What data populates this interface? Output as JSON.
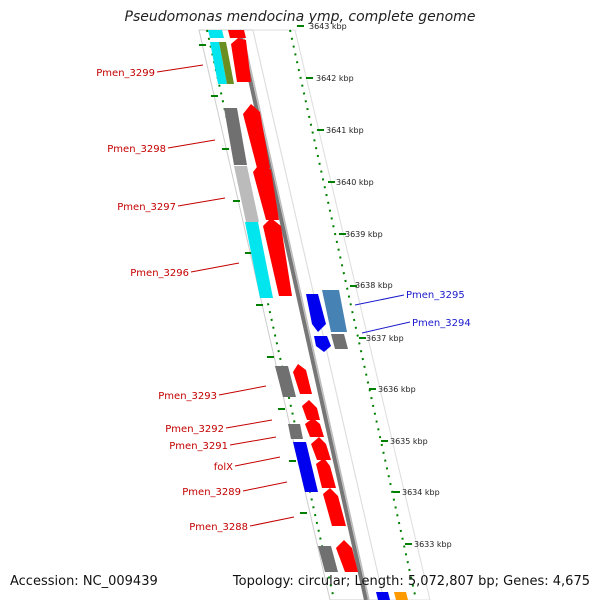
{
  "title": "Pseudomonas mendocina ymp, complete genome",
  "accession": "Accession: NC_009439",
  "summary": "Topology: circular; Length: 5,072,807 bp; Genes: 4,675",
  "colors": {
    "forward_gene": "#ff0000",
    "reverse_gene_blue": "#0000ee",
    "gray_gene": "#707070",
    "cyan_gene": "#00e5ee",
    "steel_gene": "#4682b4",
    "olive_gene": "#6b8e23",
    "orange_gene": "#ff9900",
    "tick_green": "#008000",
    "label_red": "#c40000",
    "label_blue": "#1a1acc"
  },
  "kbp_ticks": [
    "3643 kbp",
    "3642 kbp",
    "3641 kbp",
    "3640 kbp",
    "3639 kbp",
    "3638 kbp",
    "3637 kbp",
    "3636 kbp",
    "3635 kbp",
    "3634 kbp",
    "3633 kbp"
  ],
  "genes": [
    {
      "label": "Pmen_3299",
      "color": "red"
    },
    {
      "label": "Pmen_3298",
      "color": "red"
    },
    {
      "label": "Pmen_3297",
      "color": "red"
    },
    {
      "label": "Pmen_3296",
      "color": "red"
    },
    {
      "label": "Pmen_3295",
      "color": "blue"
    },
    {
      "label": "Pmen_3294",
      "color": "blue"
    },
    {
      "label": "Pmen_3293",
      "color": "red"
    },
    {
      "label": "Pmen_3292",
      "color": "red"
    },
    {
      "label": "Pmen_3291",
      "color": "red"
    },
    {
      "label": "folX",
      "color": "red"
    },
    {
      "label": "Pmen_3289",
      "color": "red"
    },
    {
      "label": "Pmen_3288",
      "color": "red"
    }
  ]
}
